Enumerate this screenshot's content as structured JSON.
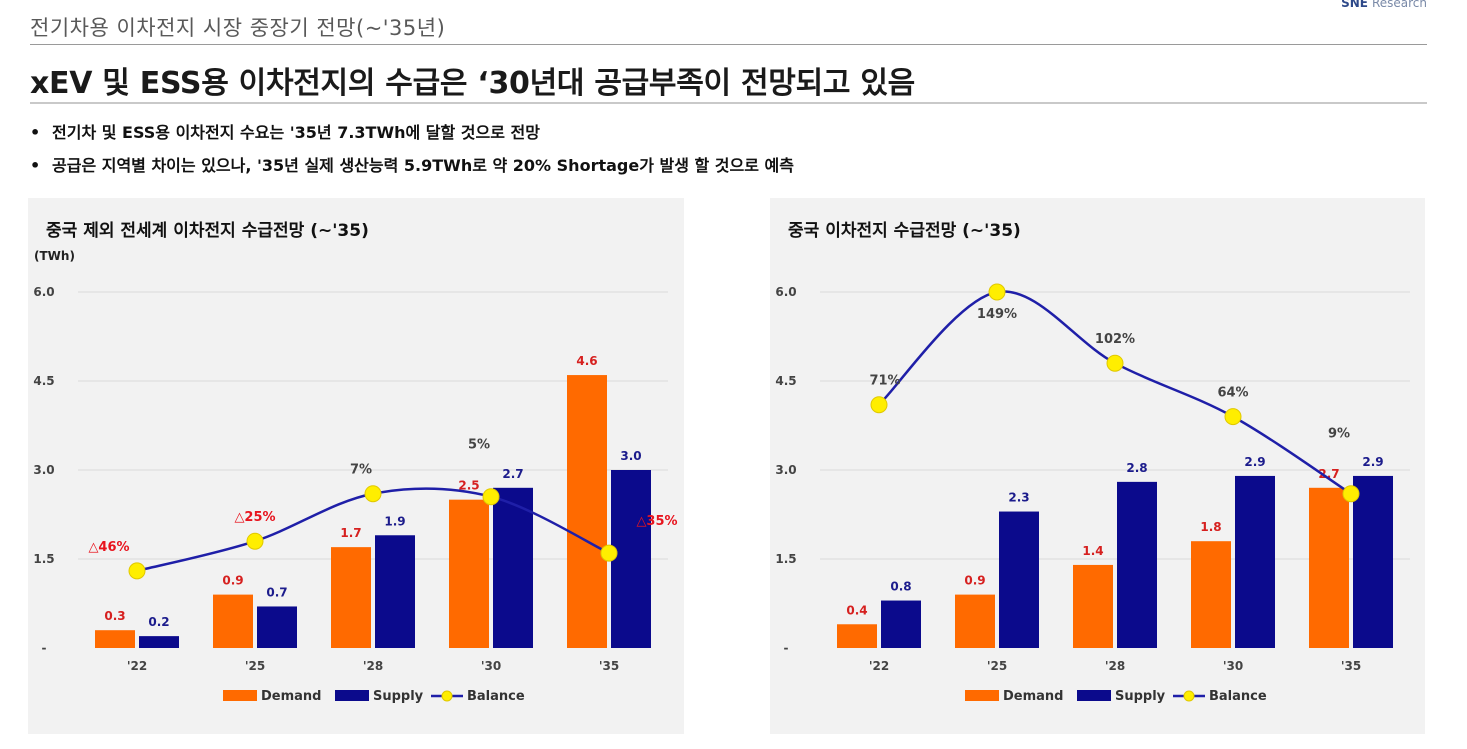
{
  "header": {
    "subtitle": "전기차용 이차전지 시장 중장기 전망(~'35년)",
    "logo": "SNE",
    "logo_sub": "Research",
    "headline": "xEV 및 ESS용 이차전지의 수급은 ‘30년대 공급부족이 전망되고 있음"
  },
  "bullets": [
    "전기차 및 ESS용 이차전지 수요는 '35년 7.3TWh에 달할 것으로 전망",
    "공급은 지역별 차이는 있으나, '35년 실제 생산능력 5.9TWh로 약 20% Shortage가 발생 할 것으로 예측"
  ],
  "colors": {
    "demand": "#ff6a00",
    "supply": "#0b0a8c",
    "balance_line": "#1f1fa8",
    "balance_dot": "#ffee00",
    "neg_label": "#e8141e",
    "pos_label": "#444444",
    "demand_label": "#d6201f",
    "supply_label": "#1c1c8c"
  },
  "chart_data": [
    {
      "type": "bar",
      "title": "중국 제외 전세계 이차전지 수급전망 (~'35)",
      "unit_label": "(TWh)",
      "categories": [
        "'22",
        "'25",
        "'28",
        "'30",
        "'35"
      ],
      "ylim": [
        0,
        6.0
      ],
      "yticks": [
        "-",
        "1.5",
        "3.0",
        "4.5",
        "6.0"
      ],
      "series": [
        {
          "name": "Demand",
          "values": [
            0.3,
            0.9,
            1.7,
            2.5,
            4.6
          ],
          "labels": [
            "0.3",
            "0.9",
            "1.7",
            "2.5",
            "4.6"
          ]
        },
        {
          "name": "Supply",
          "values": [
            0.2,
            0.7,
            1.9,
            2.7,
            3.0
          ],
          "labels": [
            "0.2",
            "0.7",
            "1.9",
            "2.7",
            "3.0"
          ]
        }
      ],
      "balance": {
        "name": "Balance",
        "values": [
          1.3,
          1.8,
          2.6,
          2.55,
          1.6
        ],
        "labels": [
          "△46%",
          "△25%",
          "7%",
          "5%",
          "△35%"
        ],
        "negative": [
          true,
          true,
          false,
          false,
          true
        ]
      },
      "legend": [
        "Demand",
        "Supply",
        "Balance"
      ]
    },
    {
      "type": "bar",
      "title": "중국 이차전지 수급전망 (~'35)",
      "unit_label": "",
      "categories": [
        "'22",
        "'25",
        "'28",
        "'30",
        "'35"
      ],
      "ylim": [
        0,
        6.0
      ],
      "yticks": [
        "-",
        "1.5",
        "3.0",
        "4.5",
        "6.0"
      ],
      "series": [
        {
          "name": "Demand",
          "values": [
            0.4,
            0.9,
            1.4,
            1.8,
            2.7
          ],
          "labels": [
            "0.4",
            "0.9",
            "1.4",
            "1.8",
            "2.7"
          ]
        },
        {
          "name": "Supply",
          "values": [
            0.8,
            2.3,
            2.8,
            2.9,
            2.9
          ],
          "labels": [
            "0.8",
            "2.3",
            "2.8",
            "2.9",
            "2.9"
          ]
        }
      ],
      "balance": {
        "name": "Balance",
        "values": [
          4.1,
          6.0,
          4.8,
          3.9,
          2.6
        ],
        "labels": [
          "71%",
          "149%",
          "102%",
          "64%",
          "9%"
        ],
        "negative": [
          false,
          false,
          false,
          false,
          false
        ]
      },
      "legend": [
        "Demand",
        "Supply",
        "Balance"
      ]
    }
  ]
}
